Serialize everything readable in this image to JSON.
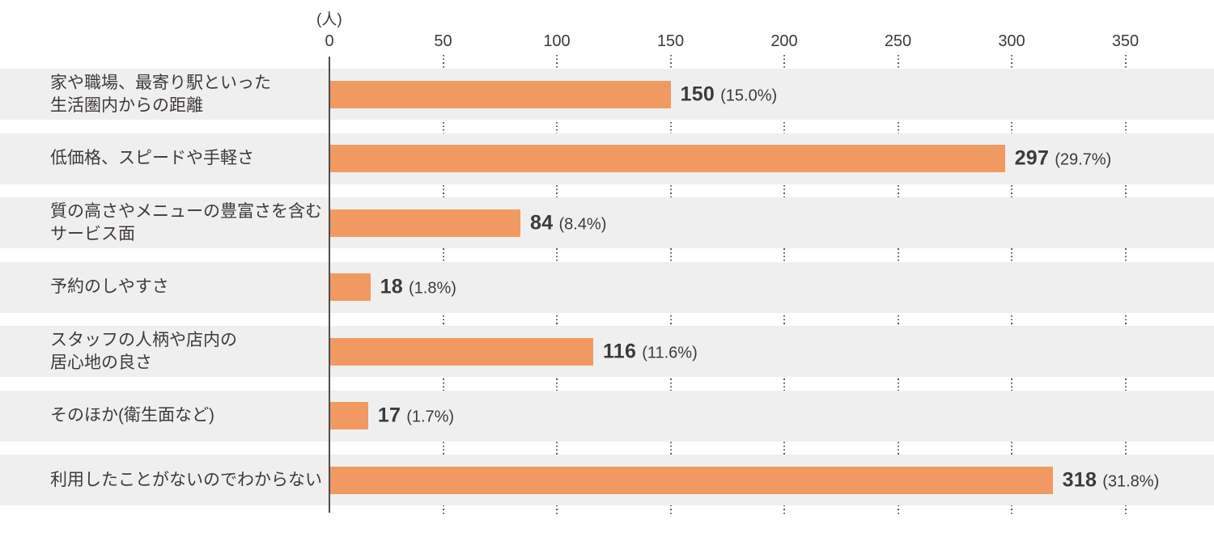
{
  "chart_data": {
    "type": "bar",
    "orientation": "horizontal",
    "title": "",
    "unit_label": "(人)",
    "xlabel": "",
    "ylabel": "",
    "x_ticks": [
      0,
      50,
      100,
      150,
      200,
      250,
      300,
      350
    ],
    "xlim": [
      0,
      380
    ],
    "grid": "dotted-vertical-in-gaps",
    "legend_position": "none",
    "categories": [
      [
        "家や職場、最寄り駅といった",
        "生活圏内からの距離"
      ],
      [
        "低価格、スピードや手軽さ"
      ],
      [
        "質の高さやメニューの豊富さを含む",
        "サービス面"
      ],
      [
        "予約のしやすさ"
      ],
      [
        "スタッフの人柄や店内の",
        "居心地の良さ"
      ],
      [
        "そのほか(衛生面など)"
      ],
      [
        "利用したことがないのでわからない"
      ]
    ],
    "values": [
      150,
      297,
      84,
      18,
      116,
      17,
      318
    ],
    "value_labels": [
      "150",
      "297",
      "84",
      "18",
      "116",
      "17",
      "318"
    ],
    "percent_labels": [
      "(15.0%)",
      "(29.7%)",
      "(8.4%)",
      "(1.8%)",
      "(11.6%)",
      "(1.7%)",
      "(31.8%)"
    ],
    "colors": {
      "bar": "#F09A62",
      "row_band": "#f0efef",
      "text": "#3E3A39",
      "axis_line": "#4f4c4c",
      "grid_dots": "#595757"
    }
  }
}
